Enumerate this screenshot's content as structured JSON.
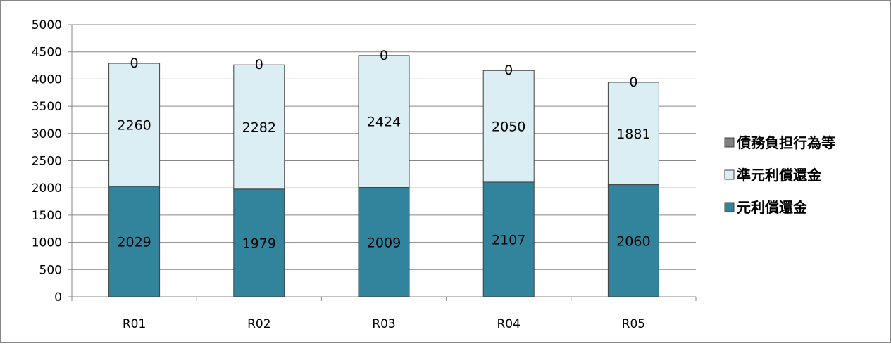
{
  "chart_data": {
    "type": "bar",
    "stacked": true,
    "categories": [
      "R01",
      "R02",
      "R03",
      "R04",
      "R05"
    ],
    "series": [
      {
        "name": "元利償還金",
        "values": [
          2029,
          1979,
          2009,
          2107,
          2060
        ],
        "color": "#31849B"
      },
      {
        "name": "準元利償還金",
        "values": [
          2260,
          2282,
          2424,
          2050,
          1881
        ],
        "color": "#DAEEF3"
      },
      {
        "name": "債務負担行為等",
        "values": [
          0,
          0,
          0,
          0,
          0
        ],
        "color": "#808080"
      }
    ],
    "legend_order": [
      "債務負担行為等",
      "準元利償還金",
      "元利償還金"
    ],
    "ylim": [
      0,
      5000
    ],
    "yticks": [
      "0",
      "500",
      "1000",
      "1500",
      "2000",
      "2500",
      "3000",
      "3500",
      "4000",
      "4500",
      "5000"
    ],
    "grid": true,
    "legend_position": "right",
    "title": "",
    "xlabel": "",
    "ylabel": ""
  }
}
